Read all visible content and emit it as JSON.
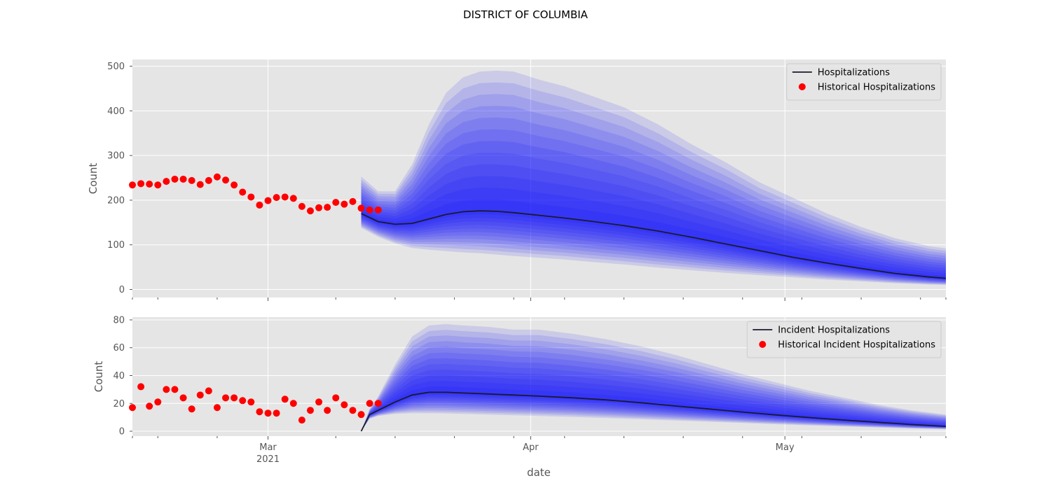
{
  "colors": {
    "panel_bg": "#e5e5e5",
    "grid": "#ffffff",
    "band": "#0000ff",
    "median": "#1a1a2e",
    "historical": "#ff0000",
    "tick": "#555555"
  },
  "chart_data": {
    "title": "DISTRICT OF COLUMBIA",
    "xlabel": "date",
    "x_range": [
      "2021-02-13",
      "2021-05-20"
    ],
    "x_major_ticks": [
      {
        "date": "2021-03-01",
        "label": "Mar",
        "sublabel": "2021"
      },
      {
        "date": "2021-04-01",
        "label": "Apr",
        "sublabel": ""
      },
      {
        "date": "2021-05-01",
        "label": "May",
        "sublabel": ""
      }
    ],
    "x_minor_tick_dates": [
      "2021-02-13",
      "2021-02-16",
      "2021-02-23",
      "2021-03-09",
      "2021-03-16",
      "2021-03-23",
      "2021-03-30",
      "2021-04-05",
      "2021-04-12",
      "2021-04-19",
      "2021-04-26",
      "2021-05-03",
      "2021-05-10",
      "2021-05-17",
      "2021-05-20"
    ],
    "panels": [
      {
        "type": "line",
        "ylabel": "Count",
        "ylim": [
          -18,
          515
        ],
        "yticks": [
          0,
          100,
          200,
          300,
          400,
          500
        ],
        "grid": true,
        "legend_position": "top-right",
        "legend": [
          {
            "label": "Hospitalizations",
            "marker": "line"
          },
          {
            "label": "Historical Hospitalizations",
            "marker": "dot"
          }
        ],
        "historical": {
          "start_date": "2021-02-13",
          "values": [
            234,
            237,
            236,
            234,
            242,
            247,
            247,
            244,
            235,
            244,
            252,
            245,
            234,
            218,
            207,
            189,
            199,
            206,
            207,
            204,
            186,
            176,
            183,
            184,
            195,
            191,
            197,
            182,
            178,
            178
          ]
        },
        "forecast": {
          "dates": [
            "2021-03-12",
            "2021-03-14",
            "2021-03-16",
            "2021-03-18",
            "2021-03-20",
            "2021-03-22",
            "2021-03-24",
            "2021-03-26",
            "2021-03-28",
            "2021-03-30",
            "2021-04-02",
            "2021-04-05",
            "2021-04-08",
            "2021-04-12",
            "2021-04-16",
            "2021-04-20",
            "2021-04-24",
            "2021-04-28",
            "2021-05-02",
            "2021-05-06",
            "2021-05-10",
            "2021-05-14",
            "2021-05-18",
            "2021-05-20"
          ],
          "median": [
            170,
            152,
            146,
            148,
            158,
            168,
            174,
            176,
            175,
            172,
            166,
            160,
            153,
            143,
            131,
            117,
            102,
            87,
            72,
            59,
            47,
            36,
            28,
            25
          ],
          "outer_upper": [
            253,
            220,
            220,
            280,
            370,
            440,
            475,
            488,
            490,
            488,
            470,
            455,
            435,
            408,
            370,
            325,
            285,
            240,
            205,
            170,
            140,
            115,
            97,
            92
          ],
          "outer_lower": [
            138,
            118,
            103,
            93,
            89,
            86,
            83,
            81,
            78,
            75,
            71,
            67,
            62,
            56,
            49,
            43,
            37,
            32,
            27,
            22,
            18,
            14,
            11,
            10
          ],
          "n_bands": 12
        }
      },
      {
        "type": "line",
        "ylabel": "Count",
        "ylim": [
          -3.5,
          82
        ],
        "yticks": [
          0,
          20,
          40,
          60,
          80
        ],
        "grid": true,
        "legend_position": "top-right",
        "legend": [
          {
            "label": "Incident Hospitalizations",
            "marker": "line"
          },
          {
            "label": "Historical Incident Hospitalizations",
            "marker": "dot"
          }
        ],
        "historical": {
          "start_date": "2021-02-13",
          "values": [
            17,
            32,
            18,
            21,
            30,
            30,
            24,
            16,
            26,
            29,
            17,
            24,
            24,
            22,
            21,
            14,
            13,
            13,
            23,
            20,
            8,
            15,
            21,
            15,
            24,
            19,
            15,
            12,
            20,
            20
          ]
        },
        "forecast": {
          "dates": [
            "2021-03-12",
            "2021-03-13",
            "2021-03-14",
            "2021-03-16",
            "2021-03-18",
            "2021-03-20",
            "2021-03-22",
            "2021-03-24",
            "2021-03-27",
            "2021-03-30",
            "2021-04-02",
            "2021-04-06",
            "2021-04-10",
            "2021-04-14",
            "2021-04-18",
            "2021-04-22",
            "2021-04-26",
            "2021-04-30",
            "2021-05-04",
            "2021-05-08",
            "2021-05-12",
            "2021-05-16",
            "2021-05-20"
          ],
          "median": [
            0,
            12,
            15,
            21,
            26,
            28,
            28,
            27.5,
            26.8,
            26,
            25.2,
            24,
            22.5,
            20.5,
            18.2,
            16,
            13.8,
            11.7,
            9.8,
            8,
            6.4,
            4.8,
            3.5
          ],
          "outer_upper": [
            0,
            16,
            25,
            48,
            68,
            76,
            77,
            76,
            75,
            73,
            73,
            70,
            66,
            61,
            55,
            48,
            41,
            35,
            29,
            24,
            19,
            15,
            12
          ],
          "outer_lower": [
            0,
            9,
            11,
            12.5,
            13,
            13,
            12.8,
            12.5,
            12,
            11.5,
            11,
            10.3,
            9.5,
            8.6,
            7.7,
            6.8,
            5.9,
            5,
            4.2,
            3.4,
            2.7,
            2,
            1.5
          ],
          "n_bands": 12
        }
      }
    ]
  }
}
